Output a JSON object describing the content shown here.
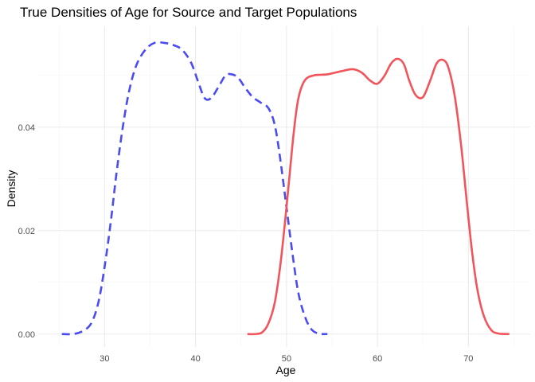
{
  "chart_data": {
    "type": "line",
    "title": "True Densities of Age for Source and Target Populations",
    "xlabel": "Age",
    "ylabel": "Density",
    "xlim": [
      22.7,
      76.8
    ],
    "ylim": [
      -0.0025,
      0.0595
    ],
    "x_ticks": [
      30,
      40,
      50,
      60,
      70
    ],
    "x_tick_labels": [
      "30",
      "40",
      "50",
      "60",
      "70"
    ],
    "y_ticks": [
      0.0,
      0.02,
      0.04
    ],
    "y_tick_labels": [
      "0.00",
      "0.02",
      "0.04"
    ],
    "grid": true,
    "legend": "none",
    "series": [
      {
        "color": "#4B4BF2",
        "line_style": "dashed",
        "points": [
          [
            25.3,
            0.0
          ],
          [
            26.5,
            0.0
          ],
          [
            27.5,
            0.0005
          ],
          [
            28.5,
            0.002
          ],
          [
            29.3,
            0.006
          ],
          [
            30.0,
            0.013
          ],
          [
            30.7,
            0.022
          ],
          [
            31.3,
            0.031
          ],
          [
            32.0,
            0.04
          ],
          [
            32.7,
            0.047
          ],
          [
            33.5,
            0.052
          ],
          [
            34.5,
            0.055
          ],
          [
            35.5,
            0.0563
          ],
          [
            36.5,
            0.0563
          ],
          [
            37.5,
            0.0559
          ],
          [
            38.5,
            0.055
          ],
          [
            39.5,
            0.0525
          ],
          [
            40.3,
            0.0487
          ],
          [
            41.0,
            0.0456
          ],
          [
            41.7,
            0.0456
          ],
          [
            42.5,
            0.0477
          ],
          [
            43.3,
            0.05
          ],
          [
            44.0,
            0.0502
          ],
          [
            44.7,
            0.0495
          ],
          [
            45.5,
            0.0475
          ],
          [
            46.3,
            0.0458
          ],
          [
            47.2,
            0.0447
          ],
          [
            48.0,
            0.0437
          ],
          [
            48.7,
            0.0405
          ],
          [
            49.3,
            0.034
          ],
          [
            50.0,
            0.0245
          ],
          [
            50.7,
            0.015
          ],
          [
            51.3,
            0.008
          ],
          [
            52.0,
            0.0035
          ],
          [
            52.7,
            0.001
          ],
          [
            53.5,
            0.0001
          ],
          [
            54.5,
            0.0
          ]
        ]
      },
      {
        "color": "#F2545B",
        "line_style": "solid",
        "points": [
          [
            45.7,
            0.0
          ],
          [
            46.5,
            0.0
          ],
          [
            47.3,
            0.0003
          ],
          [
            48.0,
            0.002
          ],
          [
            48.7,
            0.006
          ],
          [
            49.3,
            0.013
          ],
          [
            49.8,
            0.021
          ],
          [
            50.3,
            0.03
          ],
          [
            50.8,
            0.039
          ],
          [
            51.3,
            0.0455
          ],
          [
            52.0,
            0.049
          ],
          [
            53.0,
            0.05
          ],
          [
            54.5,
            0.0502
          ],
          [
            56.0,
            0.0508
          ],
          [
            57.3,
            0.0512
          ],
          [
            58.3,
            0.0505
          ],
          [
            59.2,
            0.049
          ],
          [
            60.0,
            0.0484
          ],
          [
            60.8,
            0.05
          ],
          [
            61.5,
            0.0523
          ],
          [
            62.2,
            0.0532
          ],
          [
            62.9,
            0.0522
          ],
          [
            63.5,
            0.049
          ],
          [
            64.2,
            0.0462
          ],
          [
            65.0,
            0.0458
          ],
          [
            65.8,
            0.049
          ],
          [
            66.5,
            0.0523
          ],
          [
            67.2,
            0.053
          ],
          [
            67.8,
            0.0515
          ],
          [
            68.5,
            0.046
          ],
          [
            69.2,
            0.0365
          ],
          [
            69.8,
            0.026
          ],
          [
            70.4,
            0.016
          ],
          [
            71.0,
            0.0085
          ],
          [
            71.7,
            0.0035
          ],
          [
            72.5,
            0.0008
          ],
          [
            73.3,
            0.0001
          ],
          [
            74.5,
            0.0
          ]
        ]
      }
    ]
  }
}
